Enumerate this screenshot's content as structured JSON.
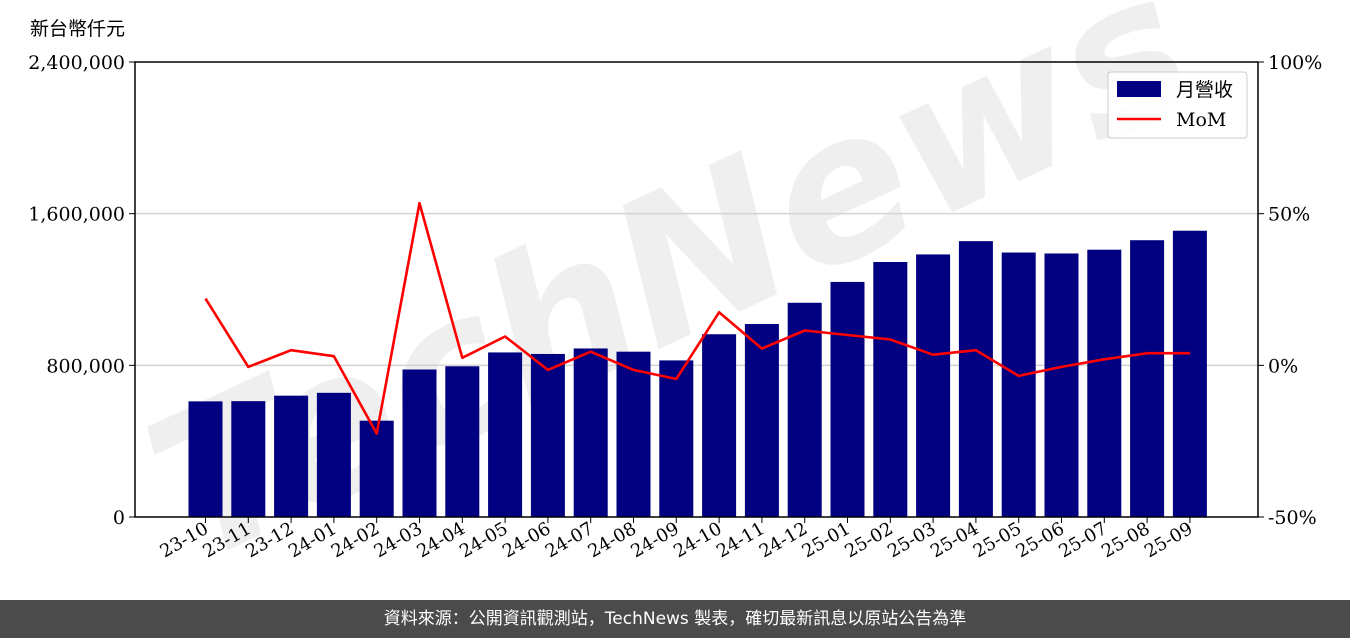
{
  "unit_label": "新台幣仟元",
  "footer_text": "資料來源：公開資訊觀測站，TechNews 製表，確切最新訊息以原站公告為準",
  "watermark": "TechNews",
  "colors": {
    "bar": "#000080",
    "line": "#ff0000",
    "footer_bg": "#4b4b4b",
    "grid": "#d3d3d3"
  },
  "chart_data": {
    "type": "bar+line",
    "categories": [
      "23-10",
      "23-11",
      "23-12",
      "24-01",
      "24-02",
      "24-03",
      "24-04",
      "24-05",
      "24-06",
      "24-07",
      "24-08",
      "24-09",
      "24-10",
      "24-11",
      "24-12",
      "25-01",
      "25-02",
      "25-03",
      "25-04",
      "25-05",
      "25-06",
      "25-07",
      "25-08",
      "25-09"
    ],
    "series": [
      {
        "name": "月營收",
        "type": "bar",
        "axis": "left",
        "values": [
          610000,
          611000,
          640000,
          655000,
          508000,
          778000,
          795000,
          868000,
          860000,
          889000,
          872000,
          826000,
          964000,
          1018000,
          1130000,
          1240000,
          1345000,
          1385000,
          1455000,
          1395000,
          1390000,
          1410000,
          1460000,
          1510000
        ]
      },
      {
        "name": "MoM",
        "type": "line",
        "axis": "right",
        "unit": "%",
        "values": [
          22,
          -0.5,
          5,
          3,
          -22.5,
          53.5,
          2.5,
          9.5,
          -1.5,
          4.5,
          -1.5,
          -4.5,
          17.5,
          5.5,
          11.5,
          10,
          8.5,
          3.5,
          5,
          -3.5,
          -0.5,
          2,
          4,
          4
        ]
      }
    ],
    "y_left": {
      "min": 0,
      "max": 2400000,
      "ticks": [
        "0",
        "800,000",
        "1,600,000",
        "2,400,000"
      ]
    },
    "y_right": {
      "min": -50,
      "max": 100,
      "ticks": [
        "-50%",
        "0%",
        "50%",
        "100%"
      ]
    },
    "grid": "horizontal",
    "legend_position": "top-right"
  }
}
